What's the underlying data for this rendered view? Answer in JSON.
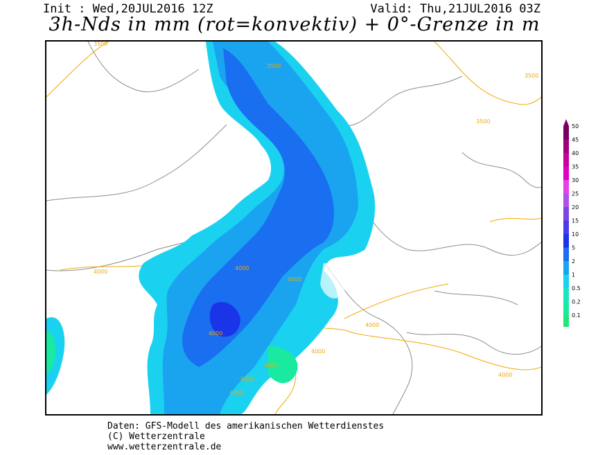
{
  "header": {
    "init": "Init : Wed,20JUL2016 12Z",
    "valid": "Valid: Thu,21JUL2016 03Z",
    "title": "3h-Nds in mm (rot=konvektiv) + 0°-Grenze in m"
  },
  "map": {
    "isoline_labels": [
      "3500",
      "3500",
      "3500",
      "3500",
      "4000",
      "4000",
      "4000",
      "4000",
      "4000",
      "4000",
      "4000",
      "4000",
      "4000",
      "4000"
    ],
    "contour_color": "#f0a800",
    "border_color": "#8c8c8c"
  },
  "legend": {
    "levels": [
      "50",
      "45",
      "40",
      "35",
      "30",
      "25",
      "20",
      "15",
      "10",
      "5",
      "2",
      "1",
      "0.5",
      "0.2",
      "0.1"
    ],
    "colors": [
      "#7a0060",
      "#a0007e",
      "#c8009e",
      "#e000c8",
      "#e840e8",
      "#b050e8",
      "#7a46e0",
      "#4a3ce8",
      "#1a34e8",
      "#1a6ef0",
      "#1aa4f0",
      "#1ad2f0",
      "#1ae6c4",
      "#1aeaa0",
      "#22e676"
    ]
  },
  "footer": {
    "line1": "Daten: GFS-Modell des amerikanischen Wetterdienstes",
    "line2": "(C) Wetterzentrale",
    "line3": "www.wetterzentrale.de"
  }
}
